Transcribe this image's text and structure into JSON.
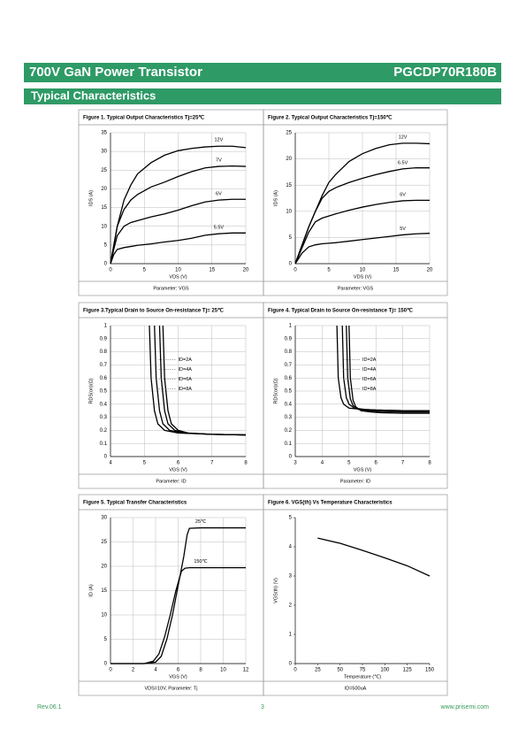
{
  "header": {
    "title": "700V GaN Power Transistor",
    "part_number": "PGCDP70R180B",
    "section": "Typical Characteristics"
  },
  "chart_data": [
    {
      "type": "line",
      "title": "Figure 1. Typical Output Characteristics Tj=25℃",
      "note": "Parameter: VGS",
      "xlabel": "VDS (V)",
      "ylabel": "IDS (A)",
      "xlim": [
        0,
        20
      ],
      "ylim": [
        0,
        35
      ],
      "xticks": [
        0,
        5,
        10,
        15,
        20
      ],
      "yticks": [
        0,
        5,
        10,
        15,
        20,
        25,
        30,
        35
      ],
      "grid": true,
      "series": [
        {
          "name": "12V",
          "color": "#000000",
          "x": [
            0,
            0.5,
            1,
            2,
            3,
            4,
            6,
            8,
            10,
            12,
            14,
            16,
            18,
            20
          ],
          "values": [
            0,
            5,
            10,
            17,
            21,
            24,
            27,
            29,
            30.2,
            30.8,
            31.2,
            31.4,
            31.4,
            31
          ]
        },
        {
          "name": "7V",
          "color": "#000000",
          "x": [
            0,
            0.5,
            1,
            2,
            3,
            4,
            6,
            8,
            10,
            12,
            14,
            16,
            18,
            20
          ],
          "values": [
            0,
            5,
            10,
            14.5,
            17,
            18.5,
            20.5,
            21.8,
            23.3,
            24.6,
            25.6,
            26,
            26.1,
            26
          ]
        },
        {
          "name": "6V",
          "color": "#000000",
          "x": [
            0,
            0.5,
            1,
            2,
            3,
            4,
            6,
            8,
            10,
            12,
            14,
            16,
            18,
            20
          ],
          "values": [
            0,
            4,
            7.5,
            10,
            11,
            11.5,
            12.5,
            13.3,
            14.3,
            15.5,
            16.5,
            17,
            17.2,
            17.2
          ]
        },
        {
          "name": "5.5V",
          "color": "#000000",
          "x": [
            0,
            0.5,
            1,
            2,
            3,
            4,
            6,
            8,
            10,
            12,
            14,
            16,
            18,
            20
          ],
          "values": [
            0,
            2.5,
            3.8,
            4.3,
            4.6,
            4.9,
            5.3,
            5.8,
            6.2,
            6.8,
            7.6,
            8,
            8.2,
            8.2
          ]
        }
      ]
    },
    {
      "type": "line",
      "title": "Figure 2. Typical Output Characteristics Tj=150℃",
      "note": "Parameter: VGS",
      "xlabel": "VDS (V)",
      "ylabel": "IDS (A)",
      "xlim": [
        0,
        20
      ],
      "ylim": [
        0,
        25
      ],
      "xticks": [
        0,
        5,
        10,
        15,
        20
      ],
      "yticks": [
        0,
        5,
        10,
        15,
        20,
        25
      ],
      "grid": true,
      "series": [
        {
          "name": "12V",
          "color": "#000000",
          "x": [
            0,
            1,
            2,
            3,
            4,
            5,
            6,
            8,
            10,
            12,
            14,
            16,
            18,
            20
          ],
          "values": [
            0,
            3.5,
            7,
            10,
            13,
            15.5,
            17,
            19.5,
            21,
            22,
            22.7,
            23,
            23,
            22.9
          ]
        },
        {
          "name": "6.5V",
          "color": "#000000",
          "x": [
            0,
            1,
            2,
            3,
            4,
            5,
            6,
            8,
            10,
            12,
            14,
            16,
            18,
            20
          ],
          "values": [
            0,
            3.5,
            7,
            10,
            12.5,
            13.8,
            14.5,
            15.5,
            16.3,
            17,
            17.6,
            18.1,
            18.3,
            18.3
          ]
        },
        {
          "name": "6V",
          "color": "#000000",
          "x": [
            0,
            1,
            2,
            3,
            4,
            5,
            6,
            8,
            10,
            12,
            14,
            16,
            18,
            20
          ],
          "values": [
            0,
            3,
            6,
            8,
            8.7,
            9.1,
            9.5,
            10.2,
            10.8,
            11.3,
            11.7,
            12,
            12.1,
            12.1
          ]
        },
        {
          "name": "5V",
          "color": "#000000",
          "x": [
            0,
            1,
            2,
            3,
            4,
            5,
            6,
            8,
            10,
            12,
            14,
            16,
            18,
            20
          ],
          "values": [
            0,
            2,
            3.2,
            3.6,
            3.8,
            3.9,
            4,
            4.3,
            4.6,
            4.9,
            5.2,
            5.5,
            5.7,
            5.8
          ]
        }
      ]
    },
    {
      "type": "line",
      "title": "Figure 3.Typical Drain to Source On-resistance Tj= 25℃",
      "note": "Parameter: ID",
      "xlabel": "VGS (V)",
      "ylabel": "RDS(on)(Ω)",
      "xlim": [
        4,
        8
      ],
      "ylim": [
        0,
        1
      ],
      "xticks": [
        4,
        5,
        6,
        7,
        8
      ],
      "yticks": [
        0,
        0.1,
        0.2,
        0.3,
        0.4,
        0.5,
        0.6,
        0.7,
        0.8,
        0.9,
        1
      ],
      "grid": true,
      "legend": "center",
      "series": [
        {
          "name": "ID=2A",
          "color": "#000000",
          "x": [
            5.15,
            5.2,
            5.3,
            5.4,
            5.6,
            6,
            7,
            8
          ],
          "values": [
            1,
            0.6,
            0.35,
            0.25,
            0.2,
            0.18,
            0.17,
            0.165
          ]
        },
        {
          "name": "ID=4A",
          "color": "#000000",
          "x": [
            5.3,
            5.35,
            5.45,
            5.55,
            5.75,
            6.1,
            7,
            8
          ],
          "values": [
            1,
            0.6,
            0.35,
            0.25,
            0.2,
            0.18,
            0.17,
            0.165
          ]
        },
        {
          "name": "ID=6A",
          "color": "#000000",
          "x": [
            5.45,
            5.5,
            5.6,
            5.7,
            5.9,
            6.2,
            7,
            8
          ],
          "values": [
            1,
            0.6,
            0.35,
            0.25,
            0.2,
            0.18,
            0.17,
            0.165
          ]
        },
        {
          "name": "ID=8A",
          "color": "#000000",
          "x": [
            5.55,
            5.6,
            5.7,
            5.8,
            6,
            6.3,
            7,
            8
          ],
          "values": [
            1,
            0.6,
            0.35,
            0.25,
            0.2,
            0.18,
            0.17,
            0.165
          ]
        }
      ]
    },
    {
      "type": "line",
      "title": "Figure 4. Typical Drain to Source On-resistance Tj= 150℃",
      "note": "Parameter: ID",
      "xlabel": "VGS (V)",
      "ylabel": "RDS(on)(Ω)",
      "xlim": [
        3,
        8
      ],
      "ylim": [
        0,
        1
      ],
      "xticks": [
        3,
        4,
        5,
        6,
        7,
        8
      ],
      "yticks": [
        0,
        0.1,
        0.2,
        0.3,
        0.4,
        0.5,
        0.6,
        0.7,
        0.8,
        0.9,
        1
      ],
      "grid": true,
      "legend": "center",
      "series": [
        {
          "name": "ID=2A",
          "color": "#000000",
          "x": [
            4.55,
            4.6,
            4.7,
            4.8,
            5,
            5.5,
            6,
            7,
            8
          ],
          "values": [
            1,
            0.6,
            0.45,
            0.4,
            0.37,
            0.36,
            0.355,
            0.35,
            0.35
          ]
        },
        {
          "name": "ID=4A",
          "color": "#000000",
          "x": [
            4.75,
            4.8,
            4.9,
            5,
            5.2,
            5.6,
            6,
            7,
            8
          ],
          "values": [
            1,
            0.6,
            0.45,
            0.4,
            0.37,
            0.36,
            0.355,
            0.35,
            0.35
          ]
        },
        {
          "name": "ID=6A",
          "color": "#000000",
          "x": [
            4.9,
            4.95,
            5.05,
            5.15,
            5.35,
            5.75,
            6.1,
            7,
            8
          ],
          "values": [
            1,
            0.6,
            0.44,
            0.39,
            0.36,
            0.35,
            0.345,
            0.34,
            0.34
          ]
        },
        {
          "name": "ID=8A",
          "color": "#000000",
          "x": [
            5,
            5.05,
            5.15,
            5.25,
            5.45,
            5.85,
            6.2,
            7,
            8
          ],
          "values": [
            1,
            0.6,
            0.43,
            0.38,
            0.35,
            0.34,
            0.335,
            0.33,
            0.33
          ]
        }
      ]
    },
    {
      "type": "line",
      "title": "Figure 5. Typical Transfer Characteristics",
      "note": "VDS=10V, Parameter: Tj",
      "xlabel": "VGS (V)",
      "ylabel": "ID (A)",
      "xlim": [
        0,
        12
      ],
      "ylim": [
        0,
        30
      ],
      "xticks": [
        0,
        2,
        4,
        6,
        8,
        10,
        12
      ],
      "yticks": [
        0,
        5,
        10,
        15,
        20,
        25,
        30
      ],
      "grid": true,
      "series": [
        {
          "name": "25℃",
          "color": "#000000",
          "x": [
            0,
            3,
            4,
            4.5,
            5,
            5.5,
            6,
            6.5,
            6.8,
            7,
            8,
            10,
            12
          ],
          "values": [
            0,
            0,
            0.3,
            1.5,
            5,
            10,
            16,
            22,
            26.5,
            27.8,
            27.9,
            27.9,
            27.9
          ]
        },
        {
          "name": "150℃",
          "color": "#000000",
          "x": [
            0,
            3,
            3.8,
            4.3,
            4.8,
            5.3,
            5.8,
            6.3,
            6.6,
            7,
            8,
            10,
            12
          ],
          "values": [
            0,
            0,
            0.5,
            2,
            5.5,
            10,
            15,
            19,
            19.6,
            19.7,
            19.7,
            19.7,
            19.7
          ]
        }
      ]
    },
    {
      "type": "line",
      "title": "Figure 6. VGS(th) Vs Temperature Characteristics",
      "note": "ID=500uA",
      "xlabel": "Temperature (℃)",
      "ylabel": "VGS(th) (V)",
      "xlim": [
        0,
        150
      ],
      "ylim": [
        0,
        5
      ],
      "xticks": [
        0,
        25,
        50,
        75,
        100,
        125,
        150
      ],
      "yticks": [
        0,
        1,
        2,
        3,
        4,
        5
      ],
      "grid": false,
      "series": [
        {
          "color": "#000000",
          "x": [
            25,
            50,
            75,
            100,
            125,
            150
          ],
          "values": [
            4.3,
            4.12,
            3.88,
            3.62,
            3.35,
            3
          ]
        }
      ]
    }
  ],
  "footer": {
    "revision": "Rev.06.1",
    "page": "3",
    "website": "www.prisemi.com"
  }
}
